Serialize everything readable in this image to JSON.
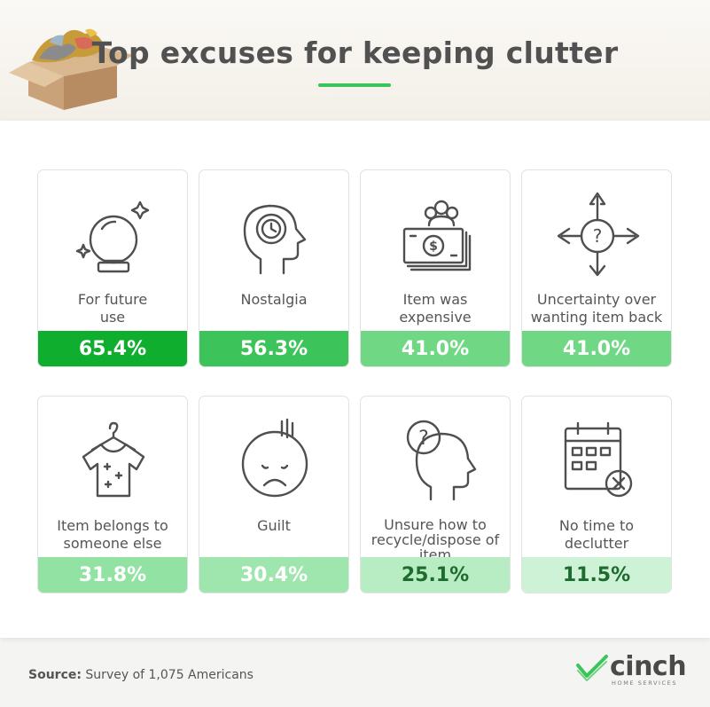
{
  "header": {
    "title": "Top excuses for keeping clutter"
  },
  "colors": {
    "accent": "#3cc35a",
    "bar_levels": [
      "#0fae2f",
      "#3cc35a",
      "#70d884",
      "#70d884",
      "#92e2a3",
      "#9ee6ad",
      "#b8ecc3",
      "#cdf2d6"
    ],
    "bar_text_light": "#ffffff",
    "bar_text_dark": "#1e6b2e"
  },
  "chart_data": {
    "type": "bar",
    "title": "Top excuses for keeping clutter",
    "categories": [
      "For future use",
      "Nostalgia",
      "Item was expensive",
      "Uncertainty over wanting item back",
      "Item belongs to someone else",
      "Guilt",
      "Unsure how to recycle/dispose of item",
      "No time to declutter"
    ],
    "values": [
      65.4,
      56.3,
      41.0,
      41.0,
      31.8,
      30.4,
      25.1,
      11.5
    ],
    "value_labels": [
      "65.4%",
      "56.3%",
      "41.0%",
      "41.0%",
      "31.8%",
      "30.4%",
      "25.1%",
      "11.5%"
    ],
    "unit": "%"
  },
  "cards": [
    {
      "label_lines": [
        "For future",
        "use"
      ],
      "icon": "crystal-ball-icon"
    },
    {
      "label_lines": [
        "Nostalgia"
      ],
      "icon": "head-clock-icon"
    },
    {
      "label_lines": [
        "Item was",
        "expensive"
      ],
      "icon": "money-people-icon"
    },
    {
      "label_lines": [
        "Uncertainty over",
        "wanting item back"
      ],
      "icon": "question-arrows-icon"
    },
    {
      "label_lines": [
        "Item belongs to",
        "someone else"
      ],
      "icon": "shirt-hanger-icon"
    },
    {
      "label_lines": [
        "Guilt"
      ],
      "icon": "sad-face-icon"
    },
    {
      "label_lines": [
        "Unsure how to",
        "recycle/dispose of",
        "item"
      ],
      "icon": "head-question-icon"
    },
    {
      "label_lines": [
        "No time to",
        "declutter"
      ],
      "icon": "calendar-x-icon"
    }
  ],
  "footer": {
    "source_label": "Source:",
    "source_text": "Survey of 1,075 Americans"
  },
  "logo": {
    "name": "cinch",
    "tagline": "HOME SERVICES"
  }
}
